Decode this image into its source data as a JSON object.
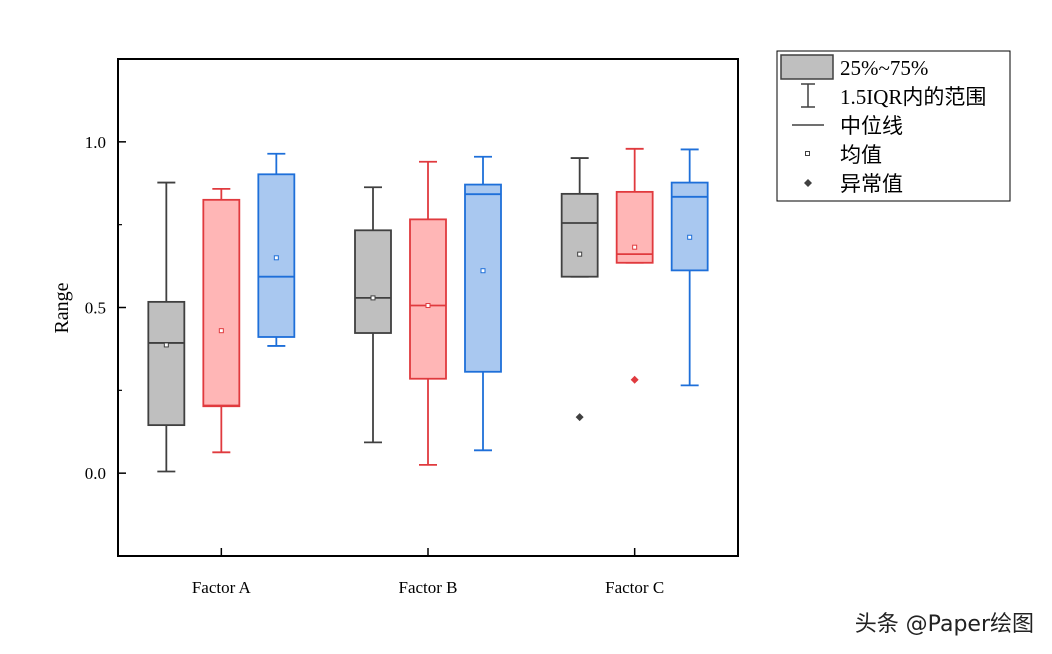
{
  "chart_data": {
    "type": "box",
    "ylabel": "Range",
    "xlabel": "",
    "ylim": [
      -0.25,
      1.25
    ],
    "yticks": [
      {
        "value": 0.0,
        "label": "0.0"
      },
      {
        "value": 0.5,
        "label": "0.5"
      },
      {
        "value": 1.0,
        "label": "1.0"
      }
    ],
    "categories": [
      "Factor A",
      "Factor B",
      "Factor C"
    ],
    "series": [
      {
        "name": "gray",
        "fill": "#bfbfbf",
        "stroke": "#404040",
        "boxes": [
          {
            "category": "Factor A",
            "whisker_low": 0.005,
            "q1": 0.145,
            "median": 0.393,
            "q3": 0.517,
            "whisker_high": 0.877,
            "mean": 0.387,
            "outliers": []
          },
          {
            "category": "Factor B",
            "whisker_low": 0.093,
            "q1": 0.423,
            "median": 0.529,
            "q3": 0.733,
            "whisker_high": 0.863,
            "mean": 0.529,
            "outliers": []
          },
          {
            "category": "Factor C",
            "whisker_low": 0.593,
            "q1": 0.593,
            "median": 0.755,
            "q3": 0.843,
            "whisker_high": 0.951,
            "mean": 0.661,
            "outliers": [
              0.169
            ]
          }
        ]
      },
      {
        "name": "red",
        "fill": "#ffb6b6",
        "stroke": "#e03a3e",
        "boxes": [
          {
            "category": "Factor A",
            "whisker_low": 0.063,
            "q1": 0.202,
            "median": 0.204,
            "q3": 0.825,
            "whisker_high": 0.858,
            "mean": 0.43,
            "outliers": []
          },
          {
            "category": "Factor B",
            "whisker_low": 0.025,
            "q1": 0.285,
            "median": 0.506,
            "q3": 0.766,
            "whisker_high": 0.94,
            "mean": 0.506,
            "outliers": []
          },
          {
            "category": "Factor C",
            "whisker_low": 0.635,
            "q1": 0.635,
            "median": 0.661,
            "q3": 0.849,
            "whisker_high": 0.979,
            "mean": 0.682,
            "outliers": [
              0.282
            ]
          }
        ]
      },
      {
        "name": "blue",
        "fill": "#a9c8f0",
        "stroke": "#1e6fd9",
        "boxes": [
          {
            "category": "Factor A",
            "whisker_low": 0.384,
            "q1": 0.411,
            "median": 0.593,
            "q3": 0.902,
            "whisker_high": 0.964,
            "mean": 0.65,
            "outliers": []
          },
          {
            "category": "Factor B",
            "whisker_low": 0.069,
            "q1": 0.306,
            "median": 0.842,
            "q3": 0.871,
            "whisker_high": 0.955,
            "mean": 0.611,
            "outliers": []
          },
          {
            "category": "Factor C",
            "whisker_low": 0.265,
            "q1": 0.612,
            "median": 0.834,
            "q3": 0.877,
            "whisker_high": 0.977,
            "mean": 0.712,
            "outliers": []
          }
        ]
      }
    ],
    "legend": {
      "placement": "outside-right-top",
      "items": [
        {
          "key": "box",
          "label": "25%~75%"
        },
        {
          "key": "whisker",
          "label": "1.5IQR内的范围"
        },
        {
          "key": "median",
          "label": "中位线"
        },
        {
          "key": "mean",
          "label": "均值"
        },
        {
          "key": "outlier",
          "label": "异常值"
        }
      ]
    }
  },
  "watermark": "头条 @Paper绘图"
}
